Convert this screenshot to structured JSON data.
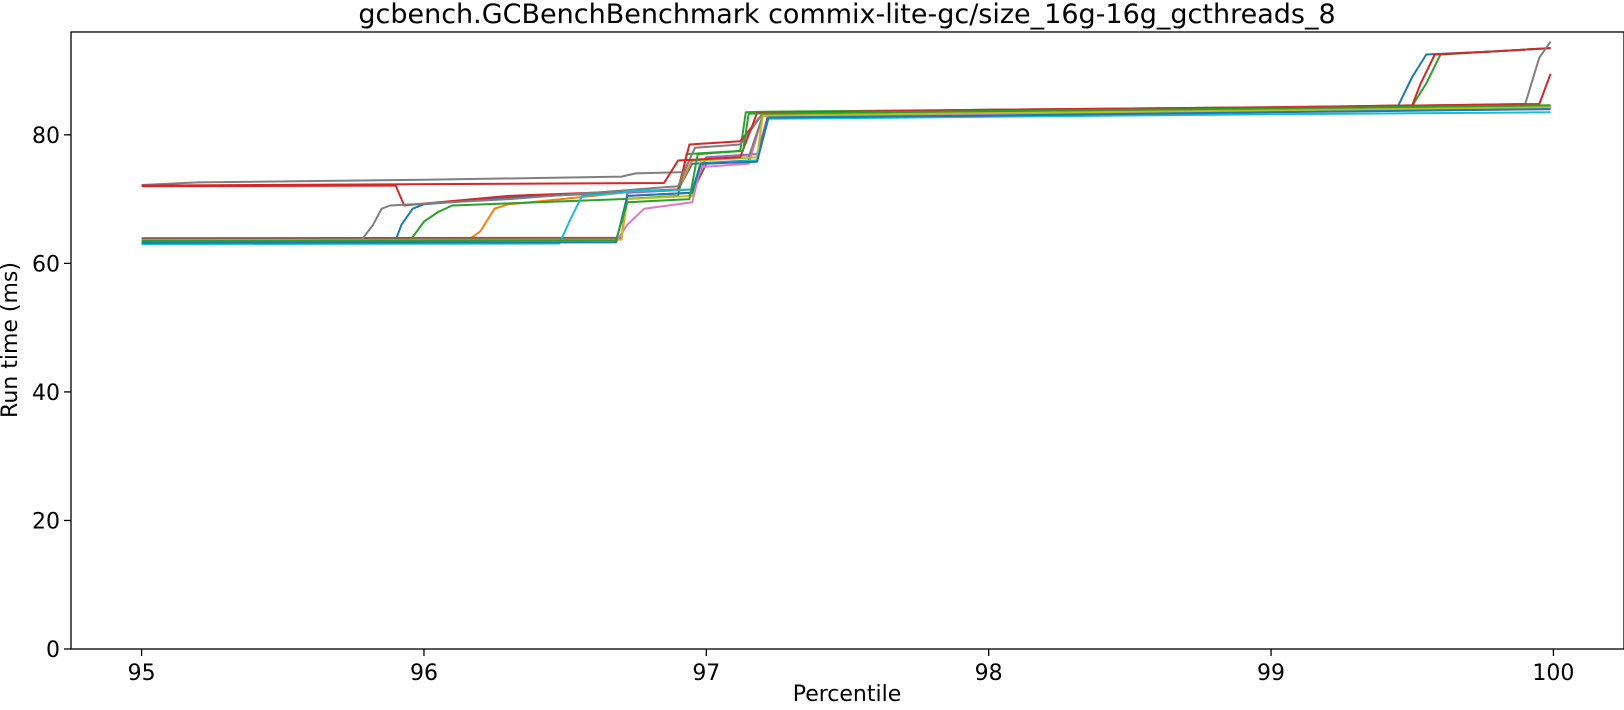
{
  "chart_data": {
    "type": "line",
    "title": "gcbench.GCBenchBenchmark commix-lite-gc/size_16g-16g_gcthreads_8",
    "xlabel": "Percentile",
    "ylabel": "Run time (ms)",
    "xlim": [
      94.75,
      100.25
    ],
    "ylim": [
      0,
      96
    ],
    "xticks": [
      95,
      96,
      97,
      98,
      99,
      100
    ],
    "yticks": [
      0,
      20,
      40,
      60,
      80
    ],
    "grid": false,
    "legend": "none",
    "series": [
      {
        "color": "#1f77b4",
        "x": [
          95,
          95.9,
          95.92,
          95.96,
          96.0,
          96.3,
          96.9,
          96.95,
          97.15,
          97.2,
          98,
          99,
          99.45,
          99.5,
          99.55,
          99.8,
          99.99
        ],
        "y": [
          63.5,
          63.6,
          66,
          68.5,
          69.2,
          70.2,
          71.5,
          75.5,
          76,
          83,
          83.5,
          84,
          84.5,
          89,
          92.5,
          93,
          93.5
        ]
      },
      {
        "color": "#ff7f0e",
        "x": [
          95,
          96.15,
          96.2,
          96.25,
          96.3,
          96.35,
          96.6,
          96.7,
          96.9,
          96.95,
          97.15,
          97.2,
          98,
          99,
          99.99
        ],
        "y": [
          63.3,
          63.4,
          65,
          68.5,
          69.2,
          69.4,
          70.5,
          71,
          71.5,
          76,
          76.5,
          83,
          83.5,
          84,
          84.5
        ]
      },
      {
        "color": "#2ca02c",
        "x": [
          95,
          95.95,
          96.0,
          96.05,
          96.1,
          96.7,
          96.9,
          96.93,
          97.12,
          97.14,
          97.2,
          98,
          99,
          99.5,
          99.55,
          99.6,
          99.99
        ],
        "y": [
          63.4,
          63.5,
          66.5,
          68,
          69,
          70,
          70.5,
          77,
          77.5,
          83.5,
          83.6,
          83.9,
          84.3,
          84.5,
          88,
          92.5,
          93.5
        ]
      },
      {
        "color": "#d62728",
        "x": [
          95,
          95.9,
          95.93,
          96.0,
          96.3,
          96.9,
          96.94,
          97.12,
          97.2,
          98,
          99,
          99.5,
          99.53,
          99.58,
          99.8,
          99.99
        ],
        "y": [
          72,
          72.1,
          69,
          69.3,
          70.5,
          71.5,
          78.5,
          79,
          83.3,
          83.8,
          84.2,
          84.6,
          88,
          92.5,
          93,
          93.5
        ]
      },
      {
        "color": "#9467bd",
        "x": [
          95,
          96.7,
          96.72,
          96.95,
          97.0,
          97.18,
          97.22,
          98,
          99,
          99.99
        ],
        "y": [
          63.8,
          63.9,
          71,
          71.5,
          76.5,
          77,
          83.2,
          83.5,
          84,
          84.5
        ]
      },
      {
        "color": "#8c564b",
        "x": [
          95,
          96.7,
          96.72,
          96.95,
          97.0,
          97.18,
          97.22,
          98,
          99,
          99.99
        ],
        "y": [
          63.9,
          64,
          70.5,
          71,
          75.5,
          76,
          83.1,
          83.4,
          83.8,
          84.3
        ]
      },
      {
        "color": "#e377c2",
        "x": [
          95,
          96.68,
          96.72,
          96.78,
          96.95,
          96.98,
          97.15,
          97.2,
          98,
          99,
          99.99
        ],
        "y": [
          63.2,
          63.3,
          66,
          68.5,
          69.5,
          75,
          75.5,
          82.9,
          83.2,
          83.6,
          84
        ]
      },
      {
        "color": "#7f7f7f",
        "x": [
          95,
          95.2,
          96.0,
          96.7,
          96.75,
          96.92,
          96.96,
          97.12,
          97.2,
          98,
          99,
          99.9,
          99.95,
          99.99
        ],
        "y": [
          72.2,
          72.6,
          73,
          73.5,
          74,
          74.2,
          78,
          78.5,
          83.3,
          83.8,
          84.2,
          84.8,
          92,
          94.5
        ]
      },
      {
        "color": "#7f7f7f",
        "x": [
          95,
          95.78,
          95.82,
          95.85,
          95.88,
          96.3,
          96.9,
          96.94,
          97.15,
          97.2,
          98,
          99,
          99.99
        ],
        "y": [
          63.6,
          63.7,
          66,
          68.5,
          69,
          70,
          72,
          76,
          76.5,
          83,
          83.4,
          83.8,
          84.2
        ]
      },
      {
        "color": "#bcbd22",
        "x": [
          95,
          96.7,
          96.72,
          96.95,
          96.98,
          97.18,
          97.2,
          98,
          99,
          99.99
        ],
        "y": [
          63.6,
          63.7,
          70,
          70.5,
          76,
          76.5,
          83,
          83.4,
          83.8,
          84.3
        ]
      },
      {
        "color": "#17becf",
        "x": [
          95,
          96.48,
          96.52,
          96.56,
          96.7,
          96.72,
          96.95,
          96.98,
          97.18,
          97.22,
          98,
          99,
          99.99
        ],
        "y": [
          63,
          63.1,
          67,
          70.5,
          71,
          71.2,
          71.5,
          75.5,
          76,
          82.5,
          82.8,
          83.2,
          83.5
        ]
      },
      {
        "color": "#1f77b4",
        "x": [
          95,
          96.68,
          96.72,
          96.95,
          96.98,
          97.18,
          97.22,
          98,
          99,
          99.99
        ],
        "y": [
          63.2,
          63.3,
          70.5,
          71,
          75.5,
          75.8,
          82.7,
          83,
          83.5,
          84
        ]
      },
      {
        "color": "#d62728",
        "x": [
          95,
          96.85,
          96.9,
          97.12,
          97.18,
          98,
          99,
          99.95,
          99.99
        ],
        "y": [
          72.1,
          72.5,
          76,
          76.5,
          83.4,
          83.9,
          84.3,
          84.8,
          89.5
        ]
      },
      {
        "color": "#2ca02c",
        "x": [
          95,
          96.68,
          96.72,
          96.94,
          96.97,
          97.13,
          97.15,
          98,
          99,
          99.99
        ],
        "y": [
          63.5,
          63.6,
          69.5,
          70,
          77,
          77.5,
          83.3,
          83.7,
          84.1,
          84.6
        ]
      }
    ]
  }
}
